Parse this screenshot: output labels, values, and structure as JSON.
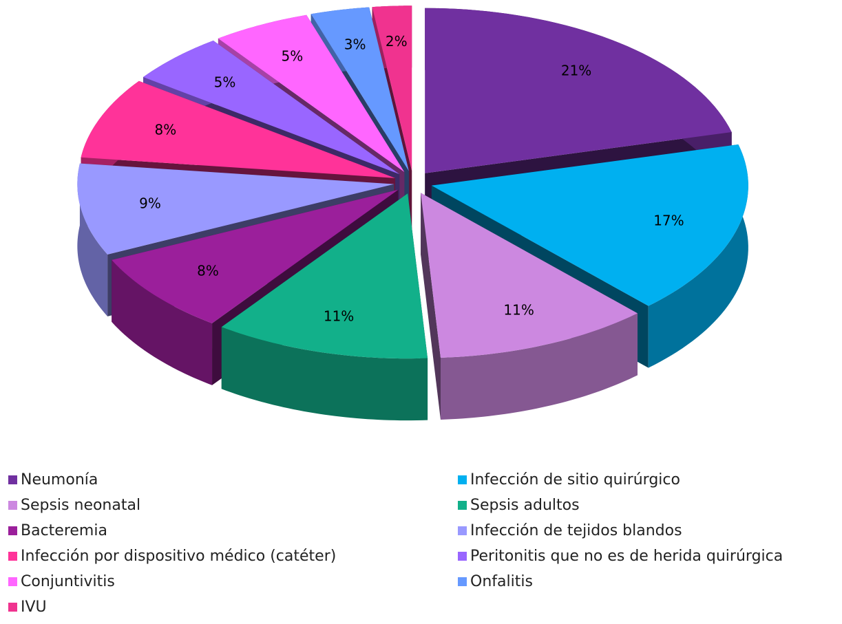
{
  "chart_data": {
    "type": "pie",
    "categories": [
      "Neumonía",
      "Infección de sitio quirúrgico",
      "Sepsis neonatal",
      "Sepsis adultos",
      "Bacteremia",
      "Infección de tejidos blandos",
      "Infección por dispositivo médico (catéter)",
      "Peritonitis que no es de herida quirúrgica",
      "Conjuntivitis",
      "Onfalitis",
      "IVU"
    ],
    "values": [
      21,
      17,
      11,
      11,
      8,
      9,
      8,
      5,
      5,
      3,
      2
    ],
    "value_labels": [
      "21%",
      "17%",
      "11%",
      "11%",
      "8%",
      "9%",
      "8%",
      "5%",
      "5%",
      "3%",
      "2%"
    ],
    "colors": [
      "#7030a0",
      "#00b0f0",
      "#cc88e0",
      "#12b08a",
      "#9b1f9b",
      "#9999ff",
      "#ff3399",
      "#9966ff",
      "#ff66ff",
      "#6699ff",
      "#f0338f"
    ],
    "legend": "bottom"
  }
}
